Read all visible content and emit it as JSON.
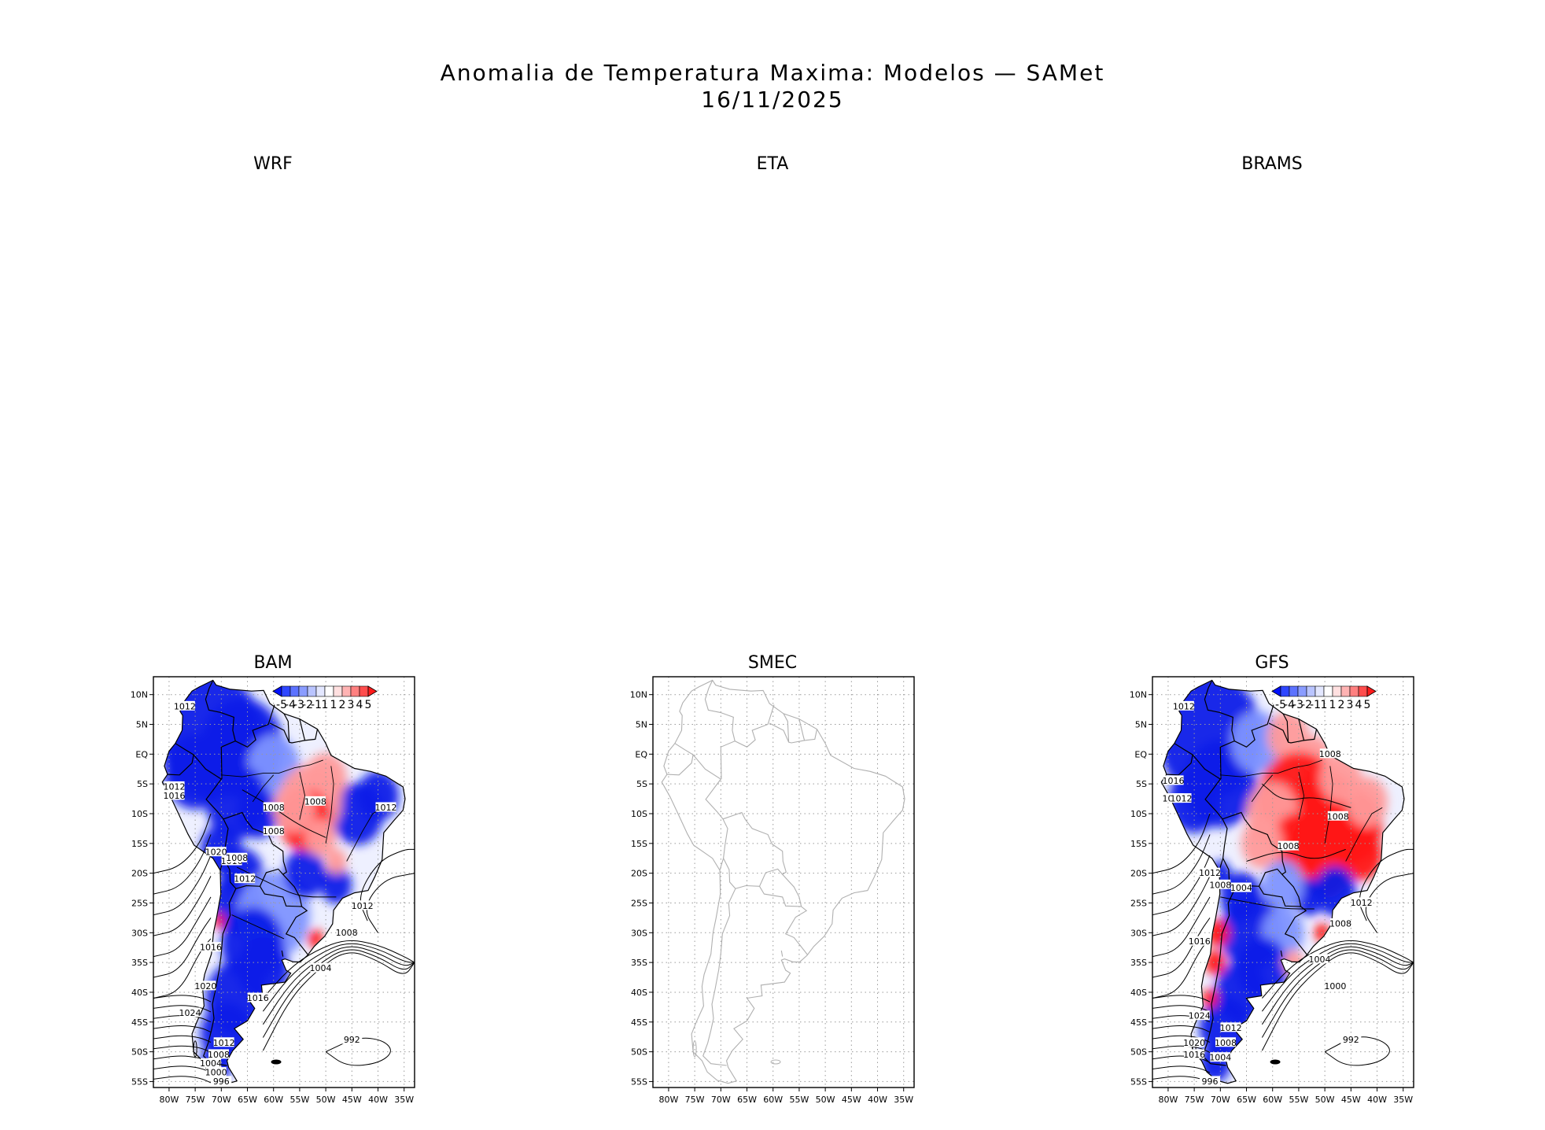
{
  "title": {
    "line1": "Anomalia de Temperatura Maxima: Modelos — SAMet",
    "line2": "16/11/2025"
  },
  "panels": [
    {
      "id": "wrf",
      "label": "WRF",
      "has_map": false
    },
    {
      "id": "eta",
      "label": "ETA",
      "has_map": false
    },
    {
      "id": "brams",
      "label": "BRAMS",
      "has_map": false
    },
    {
      "id": "bam",
      "label": "BAM",
      "has_map": true,
      "shaded": true,
      "pressure_labels": [
        "1012",
        "1012",
        "1016",
        "1008",
        "1008",
        "1008",
        "1012",
        "1020",
        "1016",
        "1008",
        "1012",
        "1012",
        "1008",
        "1016",
        "1004",
        "1020",
        "1016",
        "1024",
        "1012",
        "1008",
        "1004",
        "1000",
        "996",
        "992"
      ]
    },
    {
      "id": "smec",
      "label": "SMEC",
      "has_map": true,
      "shaded": false,
      "pressure_labels": []
    },
    {
      "id": "gfs",
      "label": "GFS",
      "has_map": true,
      "shaded": true,
      "pressure_labels": [
        "1012",
        "1008",
        "1016",
        "1016",
        "1012",
        "1008",
        "1008",
        "1012",
        "1008",
        "1004",
        "1012",
        "1008",
        "1016",
        "1004",
        "1000",
        "1024",
        "1012",
        "1020",
        "1016",
        "1008",
        "1004",
        "996",
        "992"
      ]
    }
  ],
  "axes": {
    "lat_ticks": [
      "10N",
      "5N",
      "EQ",
      "5S",
      "10S",
      "15S",
      "20S",
      "25S",
      "30S",
      "35S",
      "40S",
      "45S",
      "50S",
      "55S"
    ],
    "lon_ticks": [
      "80W",
      "75W",
      "70W",
      "65W",
      "60W",
      "55W",
      "50W",
      "45W",
      "40W",
      "35W"
    ]
  },
  "colorbar": {
    "tick_labels": [
      "-5",
      "-4",
      "-3",
      "-2",
      "-1",
      "1",
      "1",
      "2",
      "3",
      "4",
      "5"
    ],
    "colors": [
      "#0010ff",
      "#2e46ff",
      "#5c72ff",
      "#8a9cff",
      "#b9c4ff",
      "#e3e7ff",
      "#ffffff",
      "#ffe0e0",
      "#ffb3b3",
      "#ff8080",
      "#ff4d4d",
      "#ff1a1a"
    ]
  },
  "colors": {
    "cold": "#0a1fe8",
    "warm": "#ff1414",
    "light_blue": "#7f95ff",
    "light_red": "#ff9a9a",
    "grid": "#9a9a9a",
    "coast_smec": "#b0b0b0"
  }
}
